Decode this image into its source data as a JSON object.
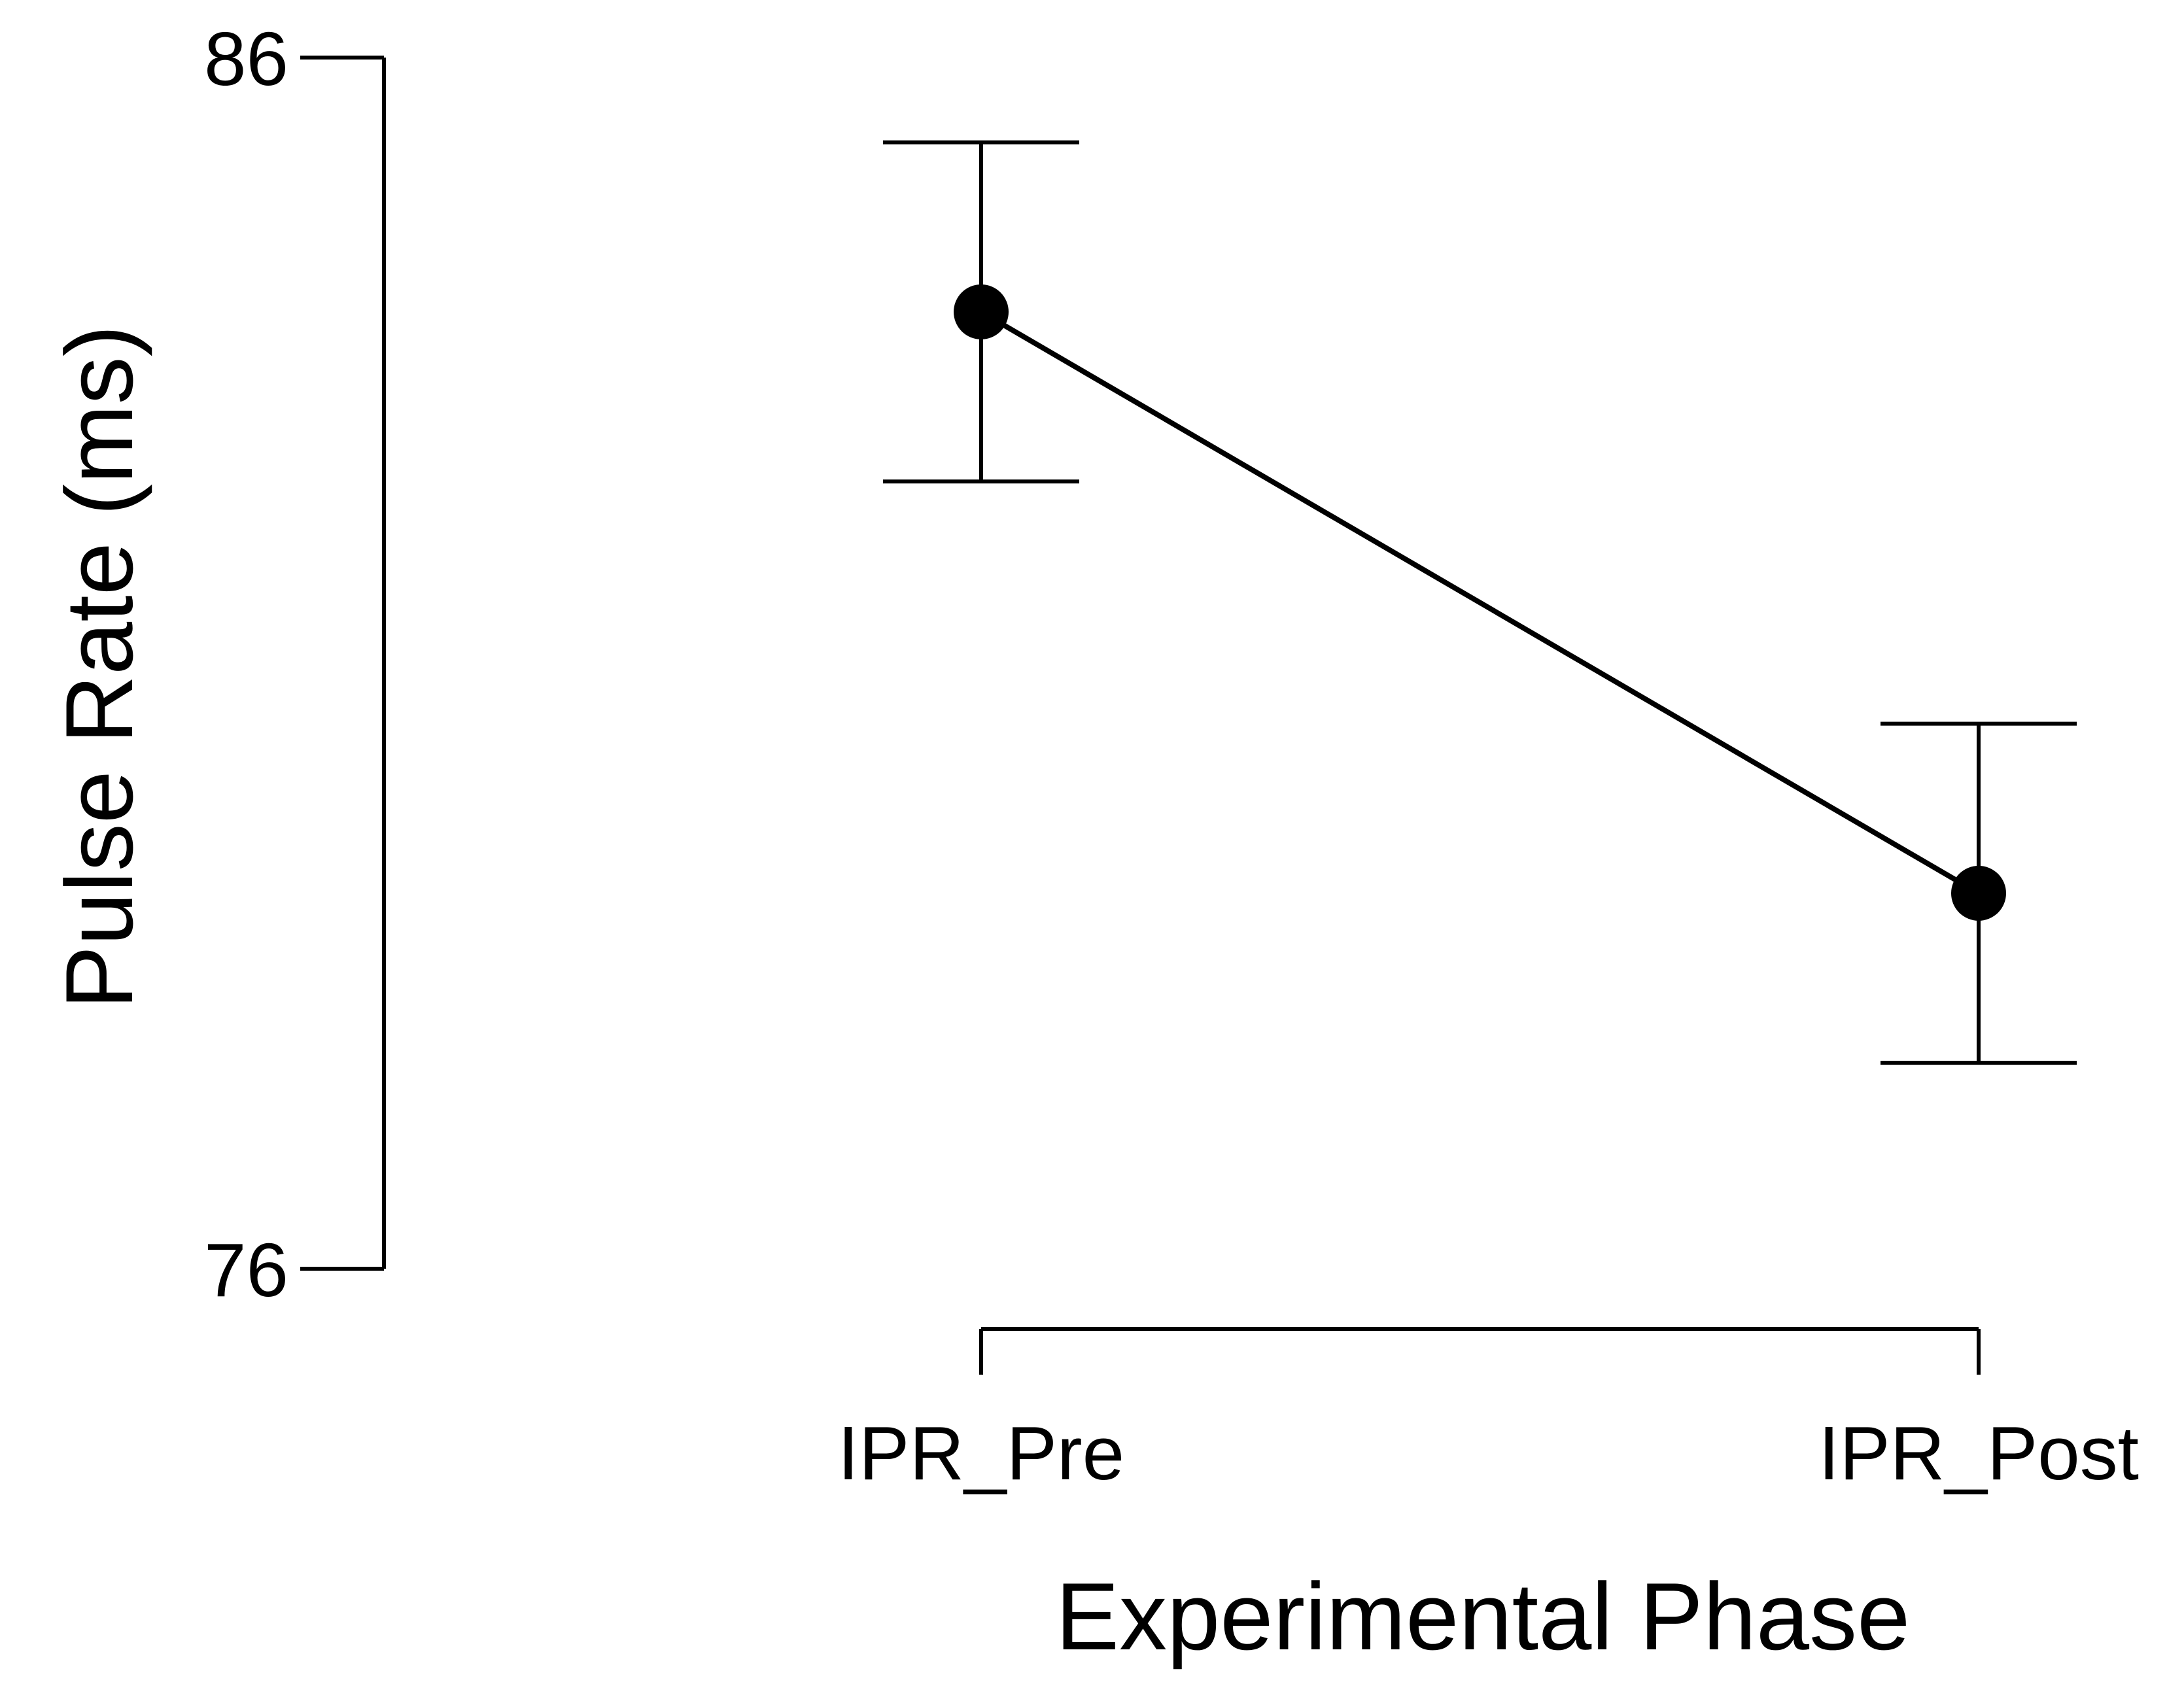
{
  "chart_data": {
    "type": "line",
    "categories": [
      "IPR_Pre",
      "IPR_Post"
    ],
    "series": [
      {
        "values": [
          83.9,
          79.1
        ],
        "error_lower": [
          82.5,
          77.7
        ],
        "error_upper": [
          85.3,
          80.5
        ]
      }
    ],
    "xlabel": "Experimental Phase",
    "ylabel": "Pulse Rate (ms)",
    "ylim": [
      76,
      86
    ],
    "yticks": [
      "86",
      "76"
    ],
    "grid": false,
    "colors": {
      "line": "#000000",
      "text": "#000000",
      "background": "#ffffff"
    }
  }
}
